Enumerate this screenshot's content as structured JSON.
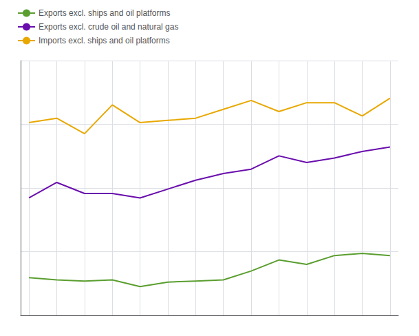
{
  "chart_data": {
    "type": "line",
    "x": [
      0,
      1,
      2,
      3,
      4,
      5,
      6,
      7,
      8,
      9,
      10,
      11,
      12,
      13
    ],
    "series": [
      {
        "name": "Exports excl. ships and oil platforms",
        "color": "#5a9e2f",
        "values": [
          72,
          71,
          70.5,
          71,
          68,
          70,
          70.5,
          71,
          75,
          80,
          78,
          82,
          83,
          82
        ]
      },
      {
        "name": "Exports excl. crude oil and natural gas",
        "color": "#6a0dad",
        "values": [
          108,
          115,
          110,
          110,
          108,
          112,
          116,
          119,
          121,
          127,
          124,
          126,
          129,
          131
        ]
      },
      {
        "name": "Imports excl. ships and oil platforms",
        "color": "#e8a800",
        "values": [
          142,
          144,
          137,
          150,
          142,
          143,
          144,
          148,
          152,
          147,
          151,
          151,
          145,
          153
        ]
      }
    ],
    "xlim": [
      -0.3,
      13.3
    ],
    "xticks": [
      0,
      1,
      2,
      3,
      4,
      5,
      6,
      7,
      8,
      9,
      10,
      11,
      12,
      13
    ],
    "ylim": [
      55,
      170
    ],
    "yticks": [
      55,
      83.75,
      112.5,
      141.25,
      170
    ],
    "grid": true,
    "legend": "left",
    "tick_labels": false
  }
}
